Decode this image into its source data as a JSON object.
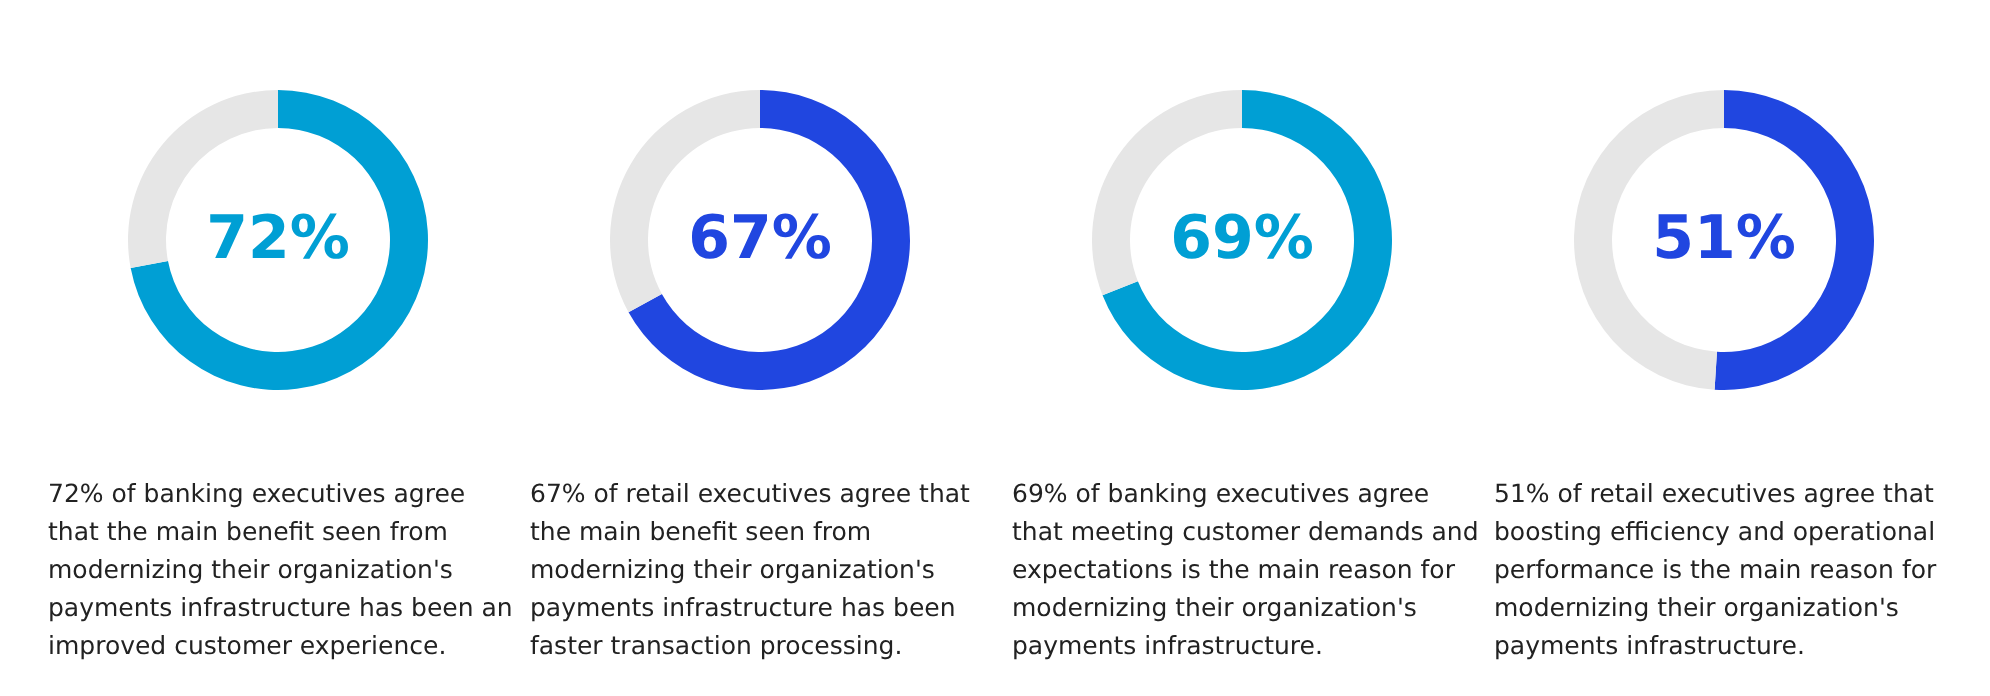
{
  "chart_data": [
    {
      "type": "donut",
      "categories": [
        null,
        null
      ],
      "values": [
        72,
        28
      ],
      "colors": [
        "#009fd4",
        "#e6e6e6"
      ],
      "value_labels": [
        "72%",
        null
      ],
      "annotations": [
        "72% of banking executives agree that the main benefit seen from modernizing their organization's payments infrastructure has been an improved customer experience."
      ]
    },
    {
      "type": "donut",
      "categories": [
        null,
        null
      ],
      "values": [
        67,
        33
      ],
      "colors": [
        "#2046e0",
        "#e6e6e6"
      ],
      "value_labels": [
        "67%",
        null
      ],
      "annotations": [
        "67% of retail executives agree that the main benefit seen from modernizing their organization's payments infrastructure has been faster transaction processing."
      ]
    },
    {
      "type": "donut",
      "categories": [
        null,
        null
      ],
      "values": [
        69,
        31
      ],
      "colors": [
        "#009fd4",
        "#e6e6e6"
      ],
      "value_labels": [
        "69%",
        null
      ],
      "annotations": [
        "69% of banking executives agree that meeting customer demands and expectations is the main reason for modernizing their organization's payments infrastructure."
      ]
    },
    {
      "type": "donut",
      "categories": [
        null,
        null
      ],
      "values": [
        51,
        49
      ],
      "colors": [
        "#2046e0",
        "#e6e6e6"
      ],
      "value_labels": [
        "51%",
        null
      ],
      "annotations": [
        "51% of retail executives agree that boosting efficiency and operational performance is the main reason for modernizing their organization's payments infrastructure."
      ]
    }
  ]
}
